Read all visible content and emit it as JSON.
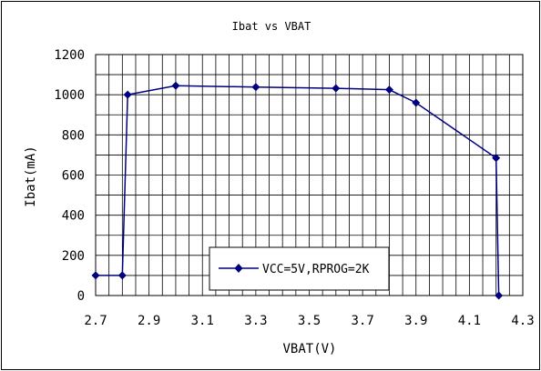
{
  "chart_data": {
    "type": "line",
    "title": "Ibat vs VBAT",
    "xlabel": "VBAT(V)",
    "ylabel": "Ibat(mA)",
    "xlim": [
      2.7,
      4.3
    ],
    "ylim": [
      0,
      1200
    ],
    "x_ticks": [
      2.7,
      2.9,
      3.1,
      3.3,
      3.5,
      3.7,
      3.9,
      4.1,
      4.3
    ],
    "x_tick_labels": [
      "2.7",
      "2.9",
      "3.1",
      "3.3",
      "3.5",
      "3.7",
      "3.9",
      "4.1",
      "4.3"
    ],
    "y_ticks": [
      0,
      200,
      400,
      600,
      800,
      1000,
      1200
    ],
    "y_tick_labels": [
      "0",
      "200",
      "400",
      "600",
      "800",
      "1000",
      "1200"
    ],
    "grid": true,
    "legend_position": "bottom-center",
    "series": [
      {
        "name": "VCC=5V,RPROG=2K",
        "color": "#000080",
        "marker": "diamond",
        "x": [
          2.7,
          2.8,
          2.82,
          3.0,
          3.3,
          3.6,
          3.8,
          3.9,
          4.2,
          4.21
        ],
        "y": [
          100,
          100,
          1000,
          1045,
          1038,
          1032,
          1025,
          960,
          685,
          0
        ]
      }
    ]
  }
}
